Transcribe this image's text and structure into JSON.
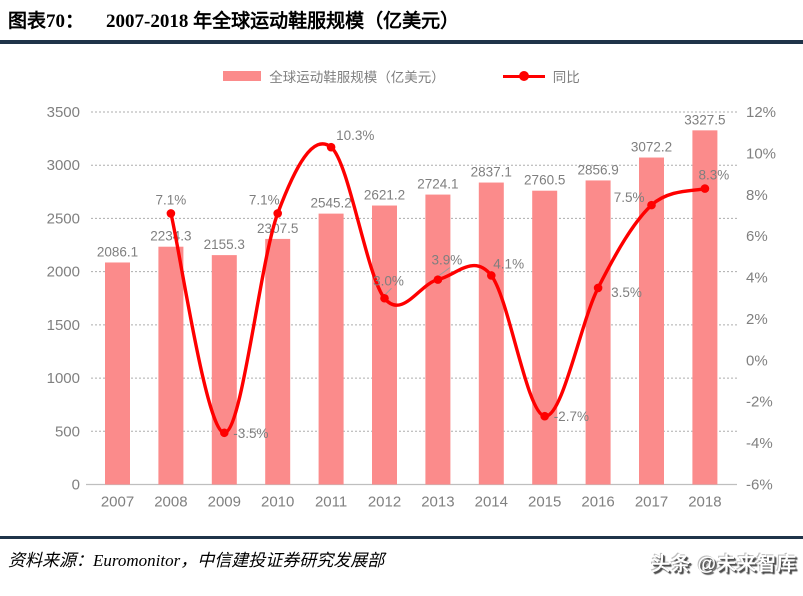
{
  "header": {
    "label": "图表70：",
    "title": "2007-2018 年全球运动鞋服规模（亿美元）"
  },
  "footer": {
    "source": "资料来源：Euromonitor，中信建投证券研究发展部",
    "watermark": "头条 @未来智库"
  },
  "colors": {
    "bar": "#FB8B8B",
    "line": "#FE0000",
    "grid": "#ADADAD",
    "axis_line": "#BFBFBF",
    "axis_text": "#808080",
    "data_label_text": "#7F7F7F",
    "rule": "#1F3449"
  },
  "chart_data": {
    "type": "combo-bar-line",
    "categories": [
      "2007",
      "2008",
      "2009",
      "2010",
      "2011",
      "2012",
      "2013",
      "2014",
      "2015",
      "2016",
      "2017",
      "2018"
    ],
    "series": [
      {
        "name": "全球运动鞋服规模（亿美元）",
        "type": "bar",
        "axis": "left",
        "color": "#FB8B8B",
        "values": [
          2086.1,
          2234.3,
          2155.3,
          2307.5,
          2545.2,
          2621.2,
          2724.1,
          2837.1,
          2760.5,
          2856.9,
          3072.2,
          3327.5
        ]
      },
      {
        "name": "同比",
        "type": "line",
        "axis": "right",
        "color": "#FE0000",
        "unit": "%",
        "values": [
          null,
          7.1,
          -3.5,
          7.1,
          10.3,
          3.0,
          3.9,
          4.1,
          -2.7,
          3.5,
          7.5,
          8.3
        ]
      }
    ],
    "left_axis": {
      "min": 0,
      "max": 3500,
      "step": 500,
      "ticks": [
        "0",
        "500",
        "1000",
        "1500",
        "2000",
        "2500",
        "3000",
        "3500"
      ]
    },
    "right_axis": {
      "min": -6,
      "max": 12,
      "step": 2,
      "ticks": [
        "-6%",
        "-4%",
        "-2%",
        "0%",
        "2%",
        "4%",
        "6%",
        "8%",
        "10%",
        "12%"
      ]
    },
    "legend_position": "top",
    "grid": true,
    "data_labels": true
  }
}
